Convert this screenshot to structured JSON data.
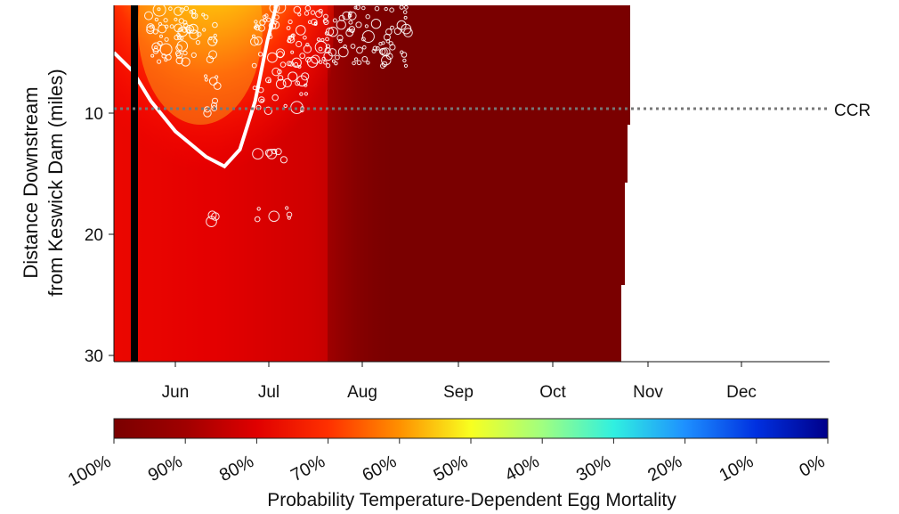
{
  "chart_data": {
    "type": "heatmap",
    "title": "",
    "ylabel_line1": "Distance Downstream",
    "ylabel_line2": "from Keswick Dam (miles)",
    "x_tick_labels": [
      "Jun",
      "Jul",
      "Aug",
      "Sep",
      "Oct",
      "Nov",
      "Dec"
    ],
    "y_ticks": [
      10,
      20,
      30
    ],
    "y_tick_labels": [
      "10",
      "20",
      "30"
    ],
    "xlim_months": [
      "mid-May",
      "end of Dec"
    ],
    "ylim": [
      1,
      30.5
    ],
    "y_reversed": true,
    "reference_line": {
      "label": "CCR",
      "distance_miles": 9.5,
      "style": "dotted gray"
    },
    "marker_line": {
      "date": "late May",
      "color": "#000000"
    },
    "contour_line": {
      "color": "#ffffff",
      "points_day_dist": [
        [
          0,
          5.0
        ],
        [
          6,
          6.5
        ],
        [
          12,
          9.0
        ],
        [
          20,
          11.5
        ],
        [
          30,
          13.6
        ],
        [
          36,
          14.4
        ],
        [
          41,
          13.0
        ],
        [
          46,
          9.0
        ],
        [
          50,
          4.0
        ],
        [
          53,
          1.0
        ]
      ]
    },
    "colorbar": {
      "label": "Probability Temperature-Dependent Egg Mortality",
      "tick_labels": [
        "100%",
        "90%",
        "80%",
        "70%",
        "60%",
        "50%",
        "40%",
        "30%",
        "20%",
        "10%",
        "0%"
      ],
      "colors": [
        "#7a0000",
        "#990000",
        "#cc0000",
        "#ff1a00",
        "#ff6a00",
        "#ffc000",
        "#d8ff3a",
        "#7dffa0",
        "#20e8f0",
        "#1a70ff",
        "#0000b0"
      ]
    },
    "data_end": "late Oct",
    "grid": false
  }
}
